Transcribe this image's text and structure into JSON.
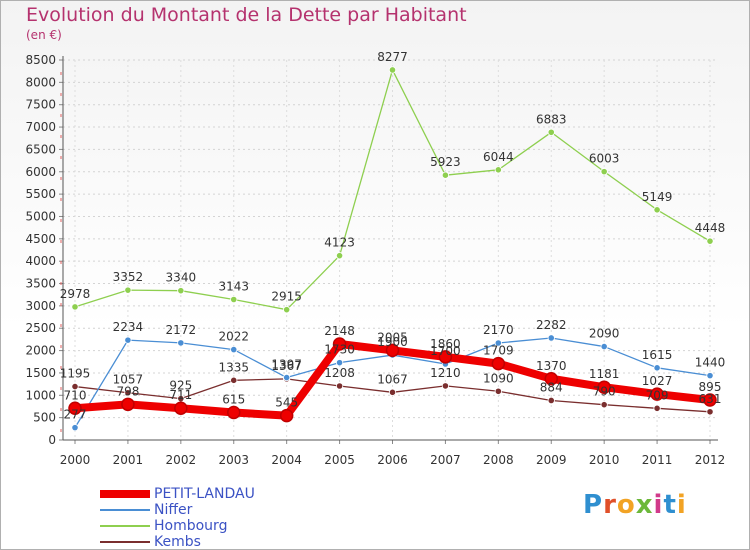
{
  "title": "Evolution du Montant de la Dette par Habitant",
  "subtitle": "(en €)",
  "logo": {
    "text": "Proxiti",
    "letters": [
      {
        "ch": "P",
        "color": "#2f8fd0"
      },
      {
        "ch": "r",
        "color": "#e0502a"
      },
      {
        "ch": "o",
        "color": "#f2a324"
      },
      {
        "ch": "x",
        "color": "#6cb83a"
      },
      {
        "ch": "i",
        "color": "#d13a8a"
      },
      {
        "ch": "t",
        "color": "#2f8fd0"
      },
      {
        "ch": "i",
        "color": "#f2a324"
      }
    ]
  },
  "chart_data": {
    "type": "line",
    "title": "Evolution du Montant de la Dette par Habitant",
    "subtitle": "(en €)",
    "xlabel": "",
    "ylabel": "",
    "ylim": [
      0,
      8500
    ],
    "yticks": [
      0,
      500,
      1000,
      1500,
      2000,
      2500,
      3000,
      3500,
      4000,
      4500,
      5000,
      5500,
      6000,
      6500,
      7000,
      7500,
      8000,
      8500
    ],
    "x": [
      "2000",
      "2001",
      "2002",
      "2003",
      "2004",
      "2005",
      "2006",
      "2007",
      "2008",
      "2009",
      "2010",
      "2011",
      "2012"
    ],
    "grid": true,
    "legend_position": "bottom-left",
    "series": [
      {
        "name": "Kembs",
        "color": "#7a2e2e",
        "values": [
          1195,
          1057,
          925,
          1335,
          1367,
          1208,
          1067,
          1210,
          1090,
          884,
          790,
          709,
          631
        ],
        "labels": [
          "1195",
          "1057",
          "925",
          "1335",
          "1367",
          "1208",
          "1067",
          "1210",
          "1090",
          "884",
          "790",
          "709",
          "631"
        ]
      },
      {
        "name": "Hombourg",
        "color": "#8ecf4f",
        "values": [
          2978,
          3352,
          3340,
          3143,
          2915,
          4123,
          8277,
          5923,
          6044,
          6883,
          6003,
          5149,
          4448
        ],
        "labels": [
          "2978",
          "3352",
          "3340",
          "3143",
          "2915",
          "4123",
          "8277",
          "5923",
          "6044",
          "6883",
          "6003",
          "5149",
          "4448"
        ]
      },
      {
        "name": "Niffer",
        "color": "#4a8ed4",
        "values": [
          277,
          2234,
          2172,
          2022,
          1397,
          1730,
          1900,
          1700,
          2170,
          2282,
          2090,
          1615,
          1440
        ],
        "labels": [
          "277",
          "2234",
          "2172",
          "2022",
          "1397",
          "1730",
          "1900",
          "1700",
          "2170",
          "2282",
          "2090",
          "1615",
          "1440"
        ]
      },
      {
        "name": "PETIT-LANDAU",
        "color": "#ee0000",
        "values": [
          710,
          798,
          711,
          615,
          545,
          2148,
          2005,
          1860,
          1709,
          1370,
          1181,
          1027,
          895
        ],
        "labels": [
          "710",
          "798",
          "711",
          "615",
          "545",
          "2148",
          "2005",
          "1860",
          "1709",
          "1370",
          "1181",
          "1027",
          "895"
        ]
      }
    ],
    "legend": [
      "PETIT-LANDAU",
      "Niffer",
      "Hombourg",
      "Kembs"
    ]
  }
}
